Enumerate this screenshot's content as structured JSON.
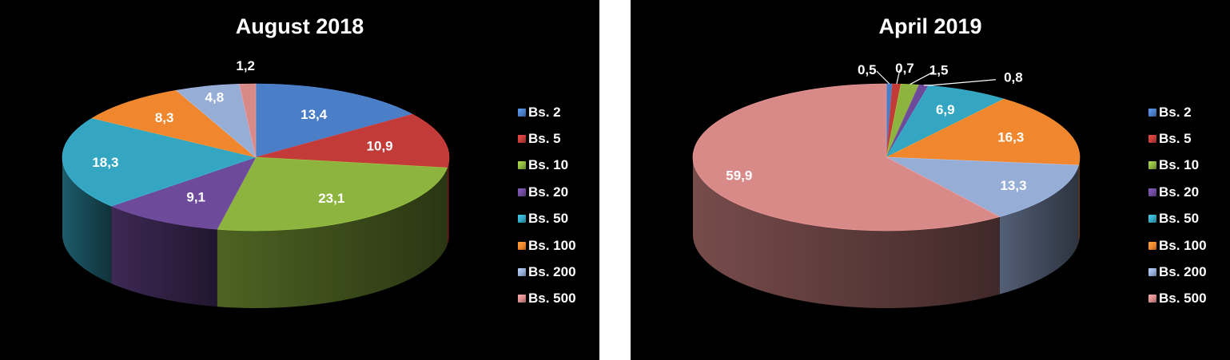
{
  "chart_data": [
    {
      "type": "pie",
      "title": "August 2018",
      "categories": [
        "Bs. 2",
        "Bs. 5",
        "Bs. 10",
        "Bs. 20",
        "Bs. 50",
        "Bs. 100",
        "Bs. 200",
        "Bs. 500"
      ],
      "values": [
        13.4,
        10.9,
        23.1,
        9.1,
        18.3,
        8.3,
        4.8,
        1.2
      ],
      "labels": [
        "13,4",
        "10,9",
        "23,1",
        "9,1",
        "18,3",
        "8,3",
        "4,8",
        "1,2"
      ],
      "legend_position": "right"
    },
    {
      "type": "pie",
      "title": "April 2019",
      "categories": [
        "Bs. 2",
        "Bs. 5",
        "Bs. 10",
        "Bs. 20",
        "Bs. 50",
        "Bs. 100",
        "Bs. 200",
        "Bs. 500"
      ],
      "values": [
        0.5,
        0.7,
        1.5,
        0.8,
        6.9,
        16.3,
        13.3,
        59.9
      ],
      "labels": [
        "0,5",
        "0,7",
        "1,5",
        "0,8",
        "6,9",
        "16,3",
        "13,3",
        "59,9"
      ],
      "legend_position": "right"
    }
  ],
  "colors": [
    "#4a7ec6",
    "#c23b38",
    "#8db43f",
    "#6e4a9a",
    "#35a6c2",
    "#f0862d",
    "#96add6",
    "#d88a89"
  ]
}
